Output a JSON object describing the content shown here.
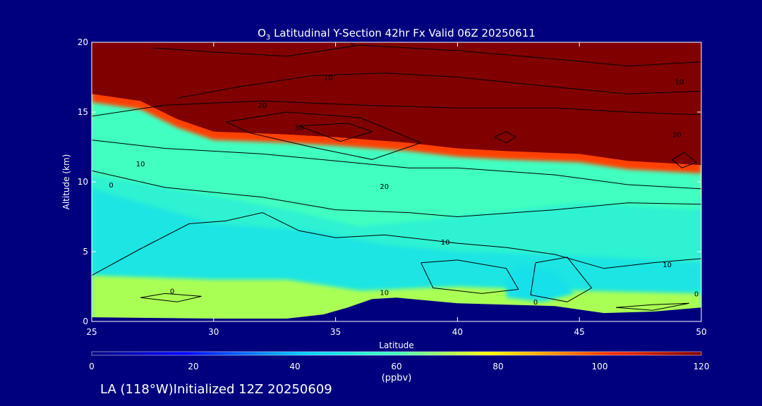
{
  "chart_data": {
    "type": "heatmap",
    "title_main": "O",
    "title_sub": "3",
    "title_rest": " Latitudinal Y-Section 42hr  Fx Valid 06Z 20250611",
    "xlabel": "Latitude",
    "ylabel": "Altitude (km)",
    "xlim": [
      25,
      50
    ],
    "ylim": [
      0,
      20
    ],
    "x_ticks": [
      "25",
      "30",
      "35",
      "40",
      "45",
      "50"
    ],
    "y_ticks": [
      "0",
      "5",
      "10",
      "15",
      "20"
    ],
    "colorbar": {
      "label": "(ppbv)",
      "range": [
        0,
        120
      ],
      "ticks": [
        "0",
        "20",
        "40",
        "60",
        "80",
        "100",
        "120"
      ]
    },
    "ozone_fields": [
      {
        "name": "stratosphere",
        "boundary_alt_km": [
          [
            25,
            16.3
          ],
          [
            27,
            15.8
          ],
          [
            28.5,
            14.5
          ],
          [
            30,
            13.6
          ],
          [
            33,
            13.4
          ],
          [
            35,
            13.2
          ],
          [
            38,
            12.8
          ],
          [
            40,
            12.4
          ],
          [
            42,
            12.2
          ],
          [
            45,
            12
          ],
          [
            47,
            11.5
          ],
          [
            50,
            11.2
          ]
        ],
        "ppbv": 120
      },
      {
        "name": "upper_trop",
        "boundary_alt_km": [
          [
            25,
            14.5
          ],
          [
            28,
            13.5
          ],
          [
            30,
            12.3
          ],
          [
            35,
            11.5
          ],
          [
            40,
            11
          ],
          [
            45,
            9.5
          ],
          [
            50,
            9
          ]
        ],
        "ppbv": 75
      },
      {
        "name": "mid_trop",
        "boundary_alt_km": [
          [
            25,
            10.5
          ],
          [
            30,
            9
          ],
          [
            33,
            8
          ],
          [
            36,
            6.8
          ],
          [
            40,
            7.5
          ],
          [
            45,
            8.5
          ],
          [
            50,
            8
          ]
        ],
        "ppbv": 60
      },
      {
        "name": "clean_layer_top",
        "boundary_alt_km": [
          [
            25,
            9.5
          ],
          [
            30,
            7
          ],
          [
            34,
            6.5
          ],
          [
            37,
            5.5
          ],
          [
            40,
            5
          ],
          [
            43,
            4.8
          ],
          [
            47,
            4.5
          ],
          [
            50,
            4.2
          ]
        ],
        "ppbv": 50
      },
      {
        "name": "boundary_layer",
        "boundary_alt_km": [
          [
            25,
            3.3
          ],
          [
            30,
            3
          ],
          [
            33,
            3
          ],
          [
            36,
            2.2
          ],
          [
            40,
            2.5
          ],
          [
            45,
            2.2
          ],
          [
            50,
            2
          ]
        ],
        "ppbv": 70
      },
      {
        "name": "clean_pocket",
        "boundary_alt_km": [
          [
            42.5,
            4
          ],
          [
            44,
            3.5
          ],
          [
            44.8,
            2
          ],
          [
            43.5,
            1.4
          ],
          [
            42,
            1.7
          ],
          [
            42,
            3
          ]
        ],
        "ppbv": 48
      }
    ],
    "terrain_alt_km": [
      [
        25,
        0.3
      ],
      [
        30,
        0.2
      ],
      [
        33,
        0.2
      ],
      [
        34.5,
        0.5
      ],
      [
        35.5,
        1
      ],
      [
        36.5,
        1.6
      ],
      [
        37.5,
        1.7
      ],
      [
        40,
        1.3
      ],
      [
        42,
        1.2
      ],
      [
        44,
        1.1
      ],
      [
        46,
        0.6
      ],
      [
        48,
        0.7
      ],
      [
        50,
        1
      ]
    ],
    "contour_labels": [
      "0",
      "10",
      "20",
      "30",
      "10",
      "20",
      "10",
      "0",
      "10",
      "0",
      "10",
      "20",
      "10",
      "0",
      "0"
    ]
  },
  "footer": {
    "text": "LA (118°W)Initialized 12Z 20250609"
  }
}
